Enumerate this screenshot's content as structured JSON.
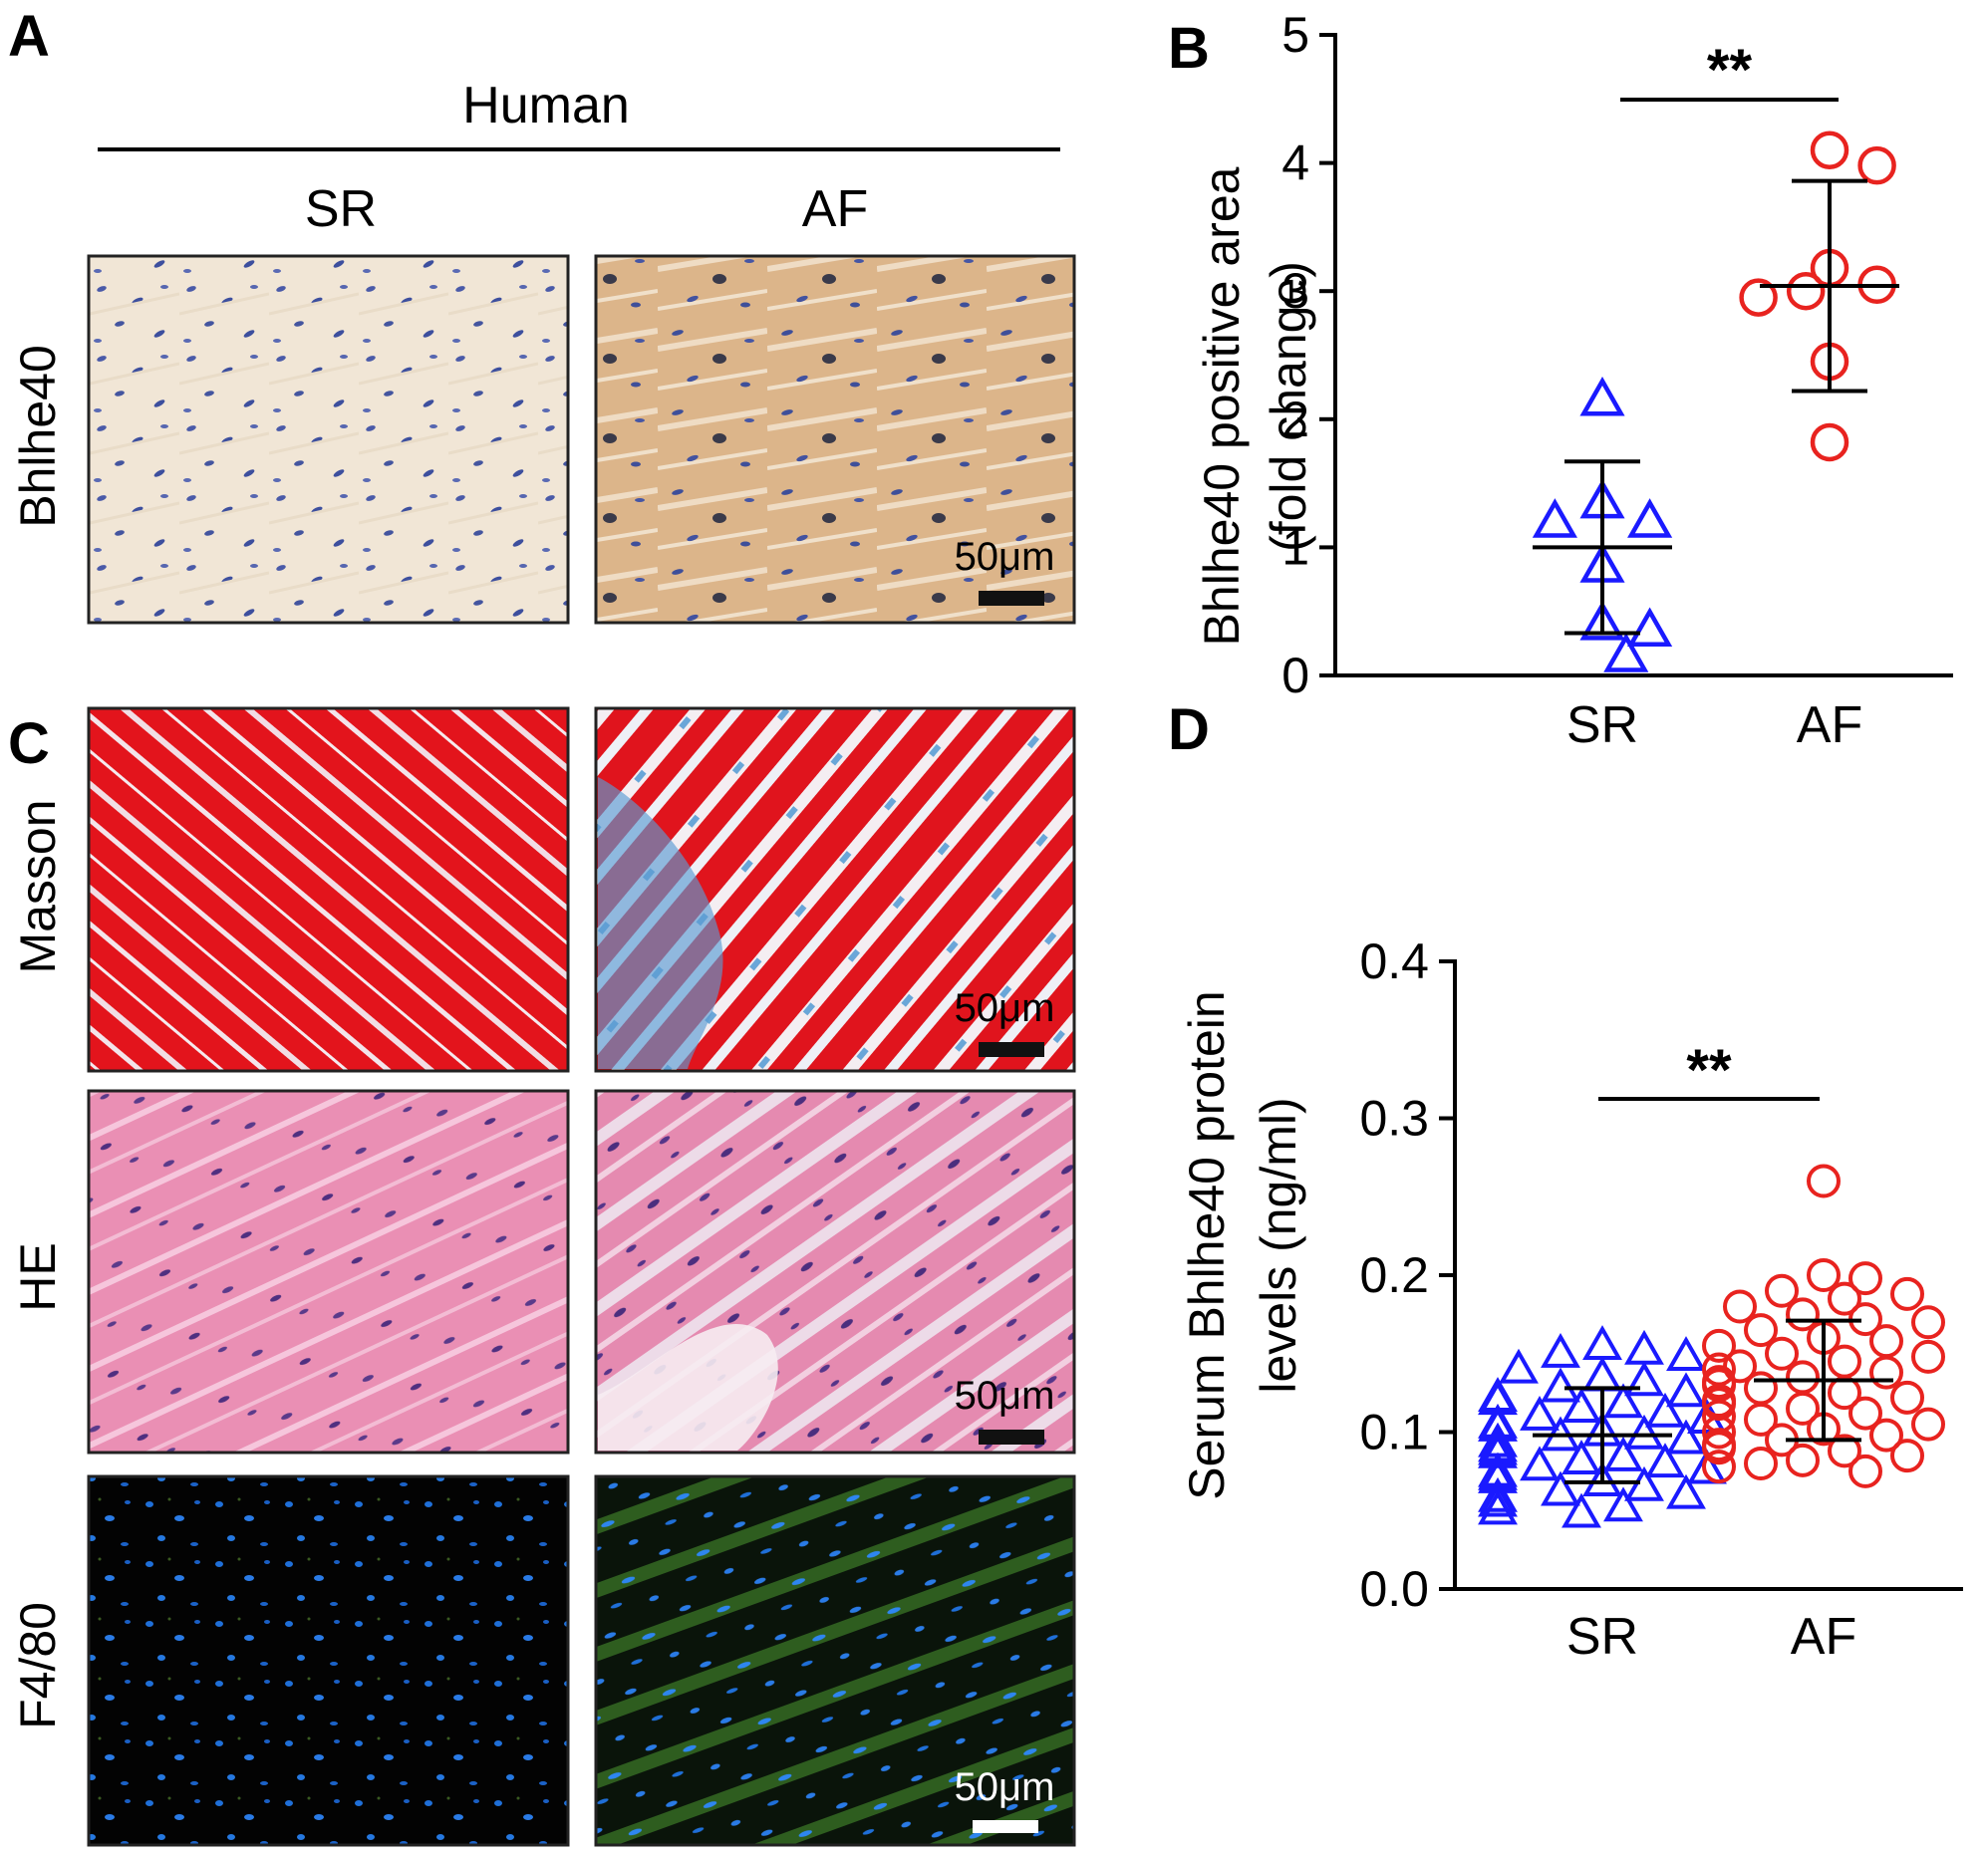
{
  "panels": {
    "a": {
      "letter": "A",
      "group": "Human",
      "columns": [
        "SR",
        "AF"
      ],
      "row_label": "Bhlhe40",
      "scale_bar": "50μm"
    },
    "b": {
      "letter": "B"
    },
    "c": {
      "letter": "C",
      "rows": [
        "Masson",
        "HE",
        "F4/80"
      ],
      "scale_bar": "50μm"
    },
    "d": {
      "letter": "D"
    }
  },
  "colors": {
    "sr_marker": "#1a1aff",
    "af_marker": "#e8231f",
    "axis": "#000000"
  },
  "chart_data": [
    {
      "type": "scatter",
      "panel": "B",
      "ylabel": [
        "Bhlhe40 positive area",
        "(fold change)"
      ],
      "categories": [
        "SR",
        "AF"
      ],
      "ylim": [
        0,
        5
      ],
      "yticks": [
        "0",
        "1",
        "2",
        "3",
        "4",
        "5"
      ],
      "significance": "**",
      "series": [
        {
          "name": "SR",
          "marker": "triangle",
          "values": [
            2.15,
            1.35,
            1.2,
            1.2,
            0.85,
            0.4,
            0.35,
            0.15
          ],
          "mean": 1.0,
          "sd": 0.67
        },
        {
          "name": "AF",
          "marker": "circle",
          "values": [
            4.1,
            3.98,
            3.18,
            3.05,
            3.0,
            2.95,
            2.45,
            1.82
          ],
          "mean": 3.04,
          "sd": 0.82
        }
      ]
    },
    {
      "type": "scatter",
      "panel": "D",
      "ylabel": [
        "Serum Bhlhe40 protein",
        "levels (ng/ml)"
      ],
      "categories": [
        "SR",
        "AF"
      ],
      "ylim": [
        0,
        0.4
      ],
      "yticks": [
        "0.0",
        "0.1",
        "0.2",
        "0.3",
        "0.4"
      ],
      "significance": "**",
      "series": [
        {
          "name": "SR",
          "marker": "triangle",
          "values": [
            0.155,
            0.152,
            0.15,
            0.148,
            0.14,
            0.135,
            0.132,
            0.128,
            0.125,
            0.122,
            0.12,
            0.118,
            0.115,
            0.112,
            0.11,
            0.108,
            0.105,
            0.103,
            0.1,
            0.098,
            0.097,
            0.095,
            0.093,
            0.09,
            0.088,
            0.086,
            0.084,
            0.082,
            0.08,
            0.078,
            0.076,
            0.074,
            0.072,
            0.07,
            0.068,
            0.065,
            0.062,
            0.06,
            0.058,
            0.055,
            0.052,
            0.05,
            0.048
          ],
          "mean": 0.098,
          "sd": 0.03
        },
        {
          "name": "AF",
          "marker": "circle",
          "values": [
            0.26,
            0.2,
            0.198,
            0.19,
            0.188,
            0.185,
            0.18,
            0.175,
            0.172,
            0.17,
            0.165,
            0.16,
            0.158,
            0.155,
            0.15,
            0.148,
            0.145,
            0.142,
            0.14,
            0.138,
            0.135,
            0.132,
            0.13,
            0.128,
            0.125,
            0.122,
            0.12,
            0.118,
            0.115,
            0.112,
            0.11,
            0.108,
            0.105,
            0.102,
            0.1,
            0.098,
            0.095,
            0.092,
            0.09,
            0.088,
            0.085,
            0.082,
            0.08,
            0.078,
            0.075
          ],
          "mean": 0.133,
          "sd": 0.038
        }
      ]
    }
  ]
}
